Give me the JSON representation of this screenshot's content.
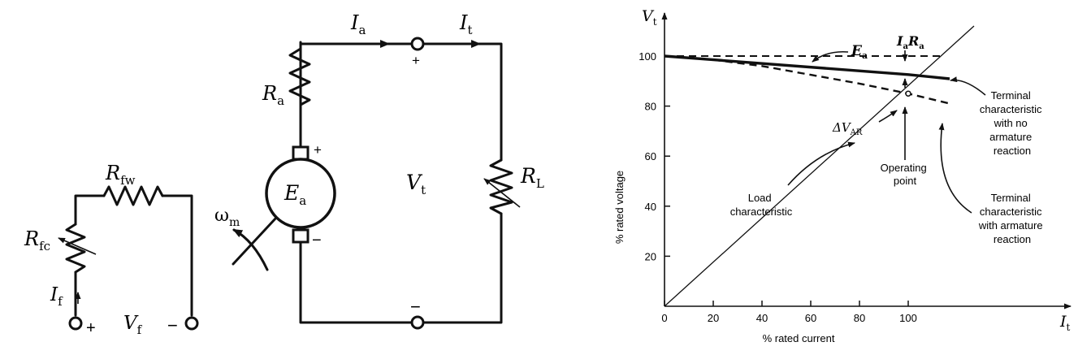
{
  "circuit": {
    "field": {
      "rfw": "R",
      "rfw_sub": "fw",
      "rfc": "R",
      "rfc_sub": "fc",
      "if": "I",
      "if_sub": "f",
      "vf": "V",
      "vf_sub": "f",
      "plus": "+",
      "minus": "−"
    },
    "armature": {
      "ia": "I",
      "ia_sub": "a",
      "it": "I",
      "it_sub": "t",
      "ra": "R",
      "ra_sub": "a",
      "ea": "E",
      "ea_sub": "a",
      "omega": "ω",
      "omega_sub": "m",
      "vt": "V",
      "vt_sub": "t",
      "rl": "R",
      "rl_sub": "L",
      "plus": "+",
      "minus": "−"
    }
  },
  "chart_data": {
    "type": "line",
    "xlabel": "% rated current",
    "ylabel": "% rated voltage",
    "x_axis_symbol": "I",
    "x_axis_symbol_sub": "t",
    "y_axis_symbol": "V",
    "y_axis_symbol_sub": "t",
    "xlim": [
      0,
      135
    ],
    "ylim": [
      0,
      112
    ],
    "xticks": [
      0,
      20,
      40,
      60,
      80,
      100
    ],
    "yticks": [
      20,
      40,
      60,
      80,
      100
    ],
    "series": [
      {
        "style": "dashed",
        "x": [
          0,
          100,
          115
        ],
        "y": [
          100,
          100,
          100
        ]
      },
      {
        "style": "solid-thick",
        "x": [
          0,
          100,
          117
        ],
        "y": [
          100,
          92.6,
          90.9
        ]
      },
      {
        "style": "dashed-curved",
        "x": [
          0,
          20,
          40,
          60,
          80,
          100,
          117
        ],
        "y": [
          100,
          98.5,
          96,
          92.5,
          89,
          85,
          81
        ]
      },
      {
        "style": "thin",
        "x": [
          0,
          127
        ],
        "y": [
          0,
          112
        ]
      }
    ],
    "annotations": {
      "ea": "E",
      "ea_sub": "a",
      "iara_i": "I",
      "iara_i_sub": "a",
      "iara_r": "R",
      "iara_r_sub": "a",
      "dvar": "ΔV",
      "dvar_sub": "AR",
      "load": [
        "Load",
        "characteristic"
      ],
      "op": [
        "Operating",
        "point"
      ],
      "term_no_ar": [
        "Terminal",
        "characteristic",
        "with no",
        "armature",
        "reaction"
      ],
      "term_ar": [
        "Terminal",
        "characteristic",
        "with armature",
        "reaction"
      ]
    }
  }
}
